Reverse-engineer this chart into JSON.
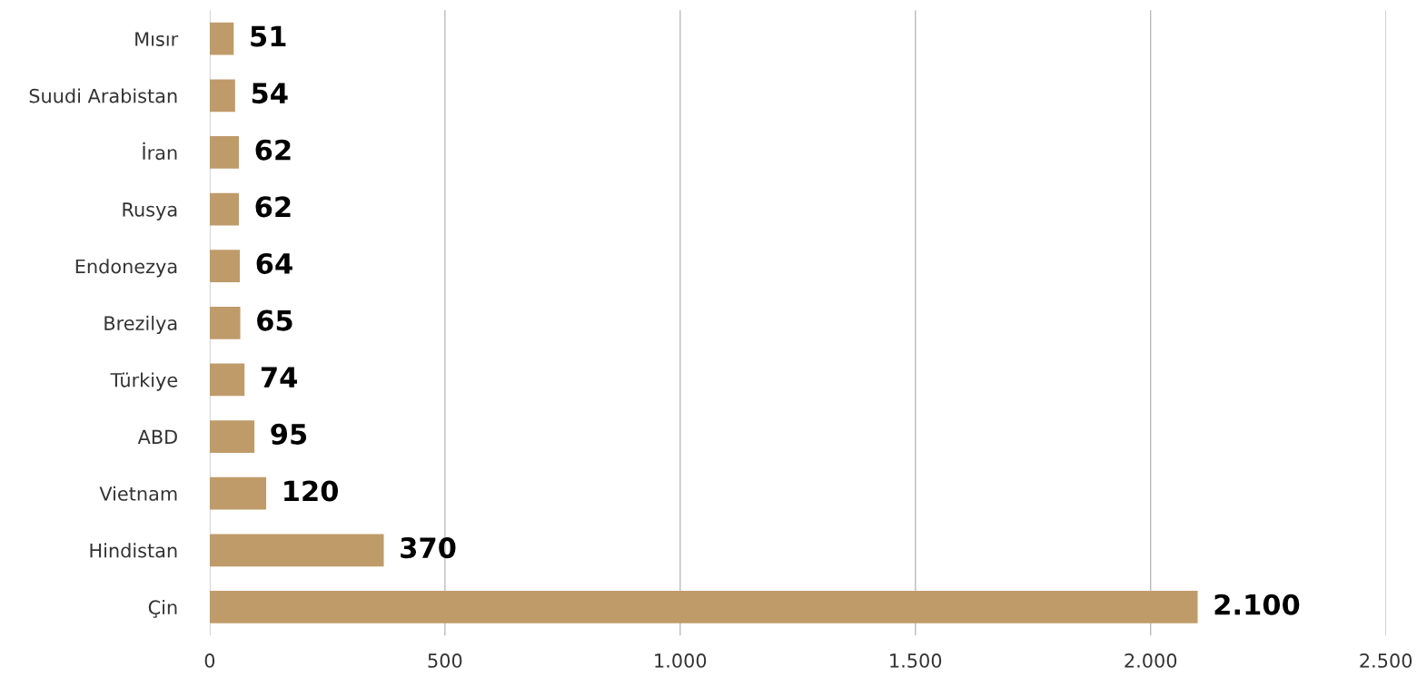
{
  "chart_data": {
    "type": "bar",
    "orientation": "horizontal",
    "categories": [
      "Mısır",
      "Suudi Arabistan",
      "İran",
      "Rusya",
      "Endonezya",
      "Brezilya",
      "Türkiye",
      "ABD",
      "Vietnam",
      "Hindistan",
      "Çin"
    ],
    "values": [
      51,
      54,
      62,
      62,
      64,
      65,
      74,
      95,
      120,
      370,
      2100
    ],
    "value_labels": [
      "51",
      "54",
      "62",
      "62",
      "64",
      "65",
      "74",
      "95",
      "120",
      "370",
      "2.100"
    ],
    "color": "#bf9b6a",
    "xlim": [
      0,
      2500
    ],
    "xticks": [
      0,
      500,
      {
        "value": 1000,
        "label": "1.000"
      },
      {
        "value": 1500,
        "label": "1.500"
      },
      {
        "value": 2000,
        "label": "2.000"
      },
      {
        "value": 2500,
        "label": "2.500"
      }
    ],
    "grid": "x"
  }
}
